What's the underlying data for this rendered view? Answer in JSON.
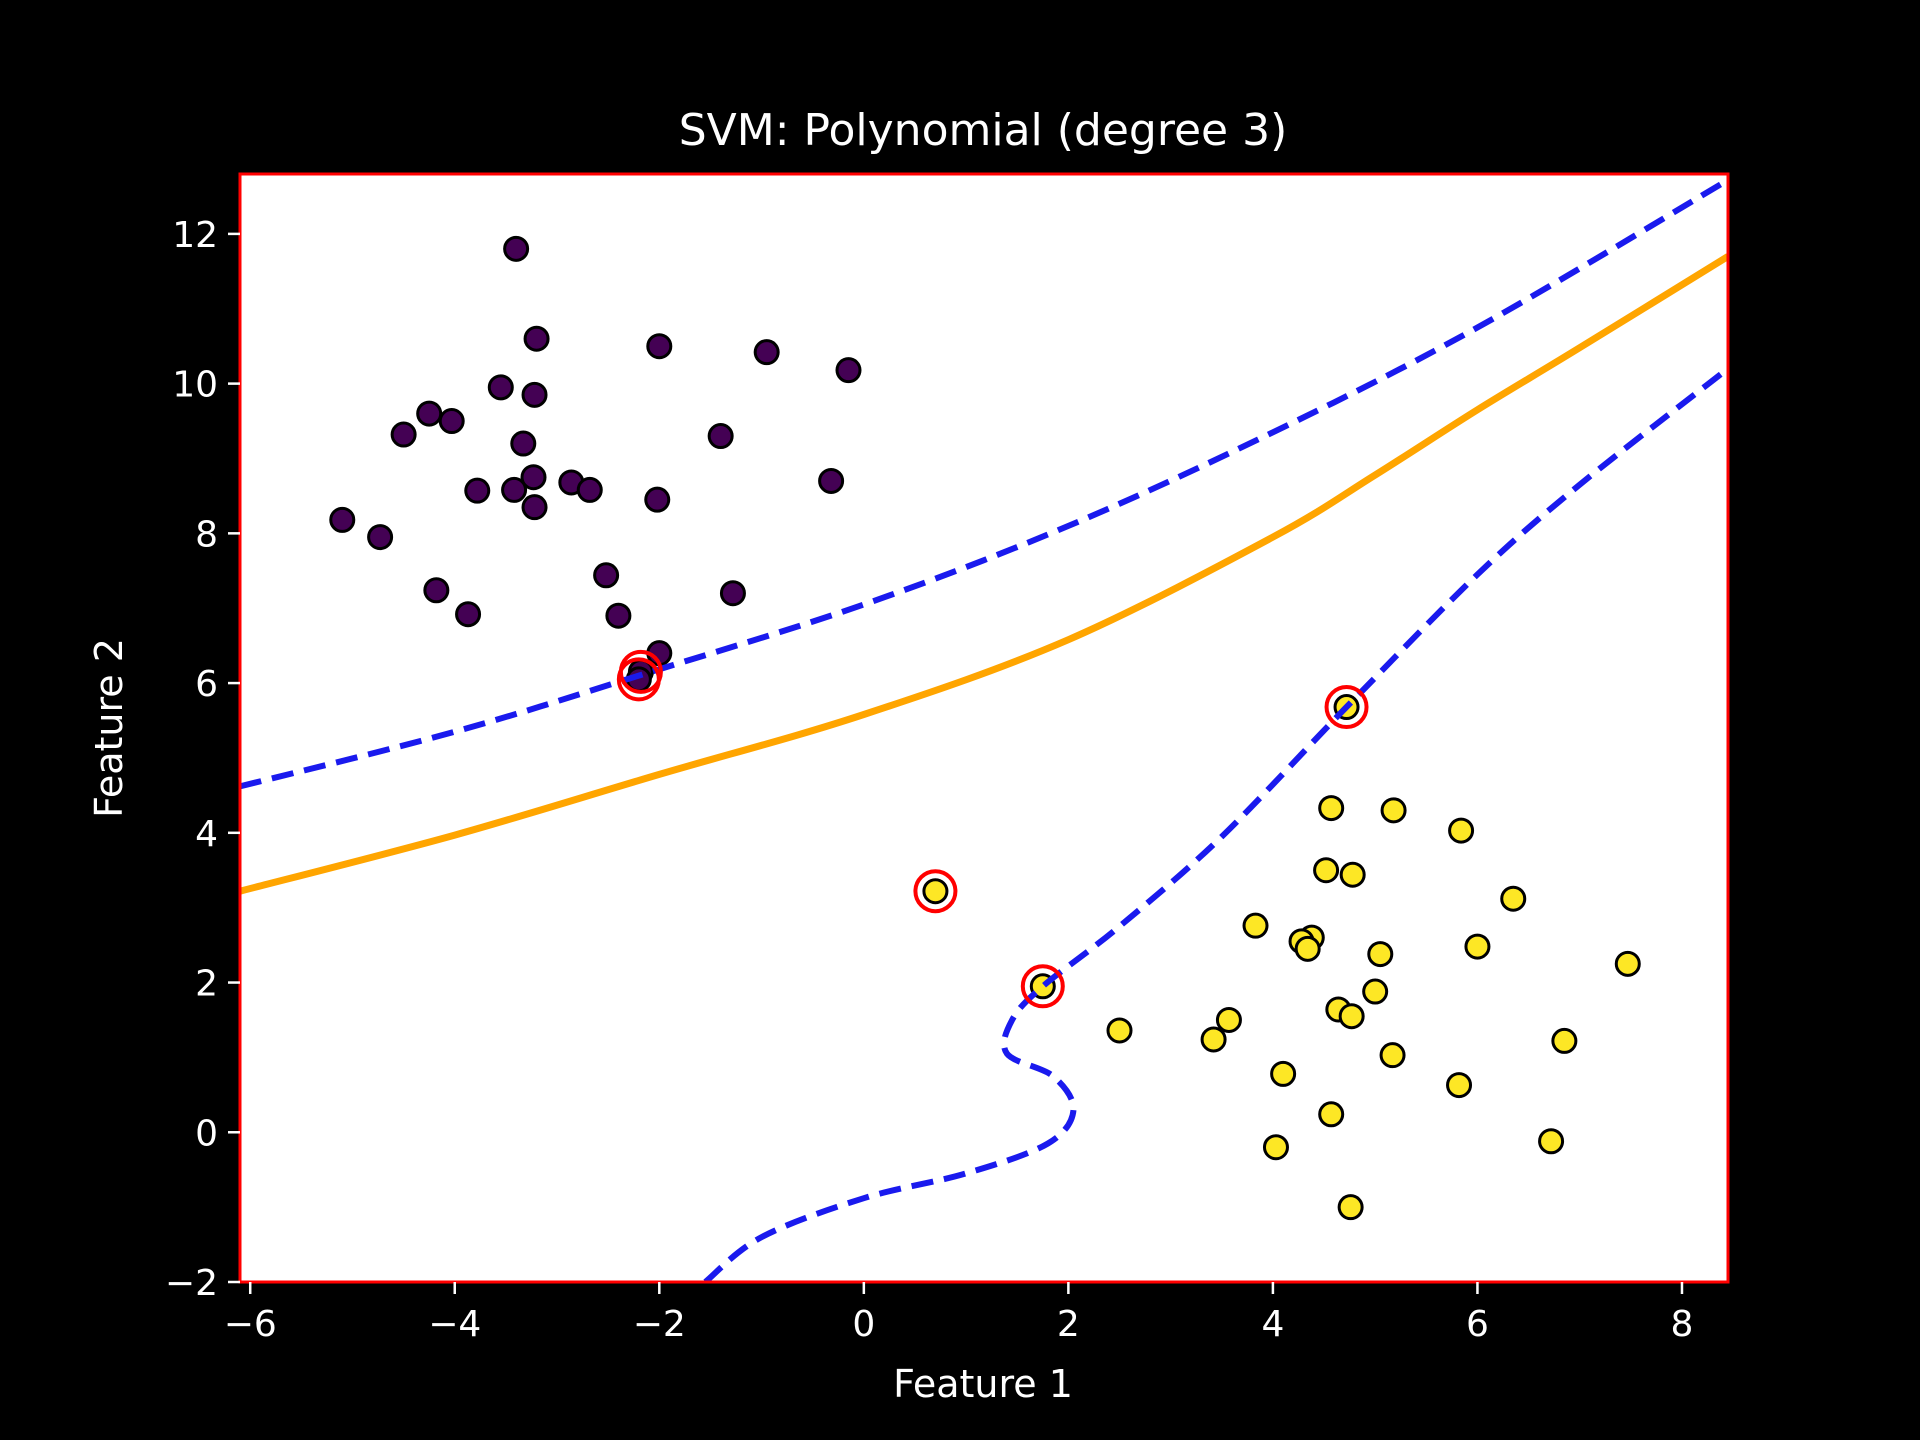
{
  "chart_data": {
    "type": "scatter",
    "title": "SVM: Polynomial (degree 3)",
    "xlabel": "Feature 1",
    "ylabel": "Feature 2",
    "xlim": [
      -6.1,
      8.45
    ],
    "ylim": [
      -2.0,
      12.8
    ],
    "xticks": [
      -6,
      -4,
      -2,
      0,
      2,
      4,
      6,
      8
    ],
    "yticks": [
      -2,
      0,
      2,
      4,
      6,
      8,
      10,
      12
    ],
    "xtick_labels": [
      "−6",
      "−4",
      "−2",
      "0",
      "2",
      "4",
      "6",
      "8"
    ],
    "ytick_labels": [
      "−2",
      "0",
      "2",
      "4",
      "6",
      "8",
      "10",
      "12"
    ],
    "grid": false,
    "colors": {
      "figure_background": "#000000",
      "plot_background": "#ffffff",
      "plot_border": "#ff0000",
      "class_0": "#440154",
      "class_1": "#fde725",
      "point_edge": "#000000",
      "decision_boundary": "#ffa500",
      "margin": "#1a1aee",
      "support_vector_ring": "#ff0000"
    },
    "series": [
      {
        "class": 0,
        "points": [
          [
            -3.4,
            11.8
          ],
          [
            -3.2,
            10.6
          ],
          [
            -2.0,
            10.5
          ],
          [
            -0.95,
            10.42
          ],
          [
            -0.15,
            10.18
          ],
          [
            -3.55,
            9.95
          ],
          [
            -3.22,
            9.85
          ],
          [
            -4.25,
            9.6
          ],
          [
            -4.03,
            9.5
          ],
          [
            -4.5,
            9.32
          ],
          [
            -3.33,
            9.2
          ],
          [
            -1.4,
            9.3
          ],
          [
            -3.23,
            8.75
          ],
          [
            -2.86,
            8.68
          ],
          [
            -2.68,
            8.58
          ],
          [
            -3.78,
            8.57
          ],
          [
            -3.42,
            8.58
          ],
          [
            -3.22,
            8.35
          ],
          [
            -2.02,
            8.45
          ],
          [
            -0.32,
            8.7
          ],
          [
            -5.1,
            8.18
          ],
          [
            -4.73,
            7.95
          ],
          [
            -2.52,
            7.44
          ],
          [
            -1.28,
            7.2
          ],
          [
            -4.18,
            7.24
          ],
          [
            -3.87,
            6.92
          ],
          [
            -2.4,
            6.9
          ],
          [
            -2.0,
            6.4
          ],
          [
            -2.18,
            6.15
          ],
          [
            -2.2,
            6.05
          ]
        ]
      },
      {
        "class": 1,
        "points": [
          [
            4.72,
            5.68
          ],
          [
            4.57,
            4.33
          ],
          [
            5.18,
            4.3
          ],
          [
            5.84,
            4.03
          ],
          [
            4.52,
            3.5
          ],
          [
            4.78,
            3.44
          ],
          [
            6.35,
            3.12
          ],
          [
            0.7,
            3.22
          ],
          [
            3.83,
            2.76
          ],
          [
            4.38,
            2.6
          ],
          [
            4.28,
            2.55
          ],
          [
            4.34,
            2.45
          ],
          [
            6.0,
            2.48
          ],
          [
            5.05,
            2.38
          ],
          [
            7.47,
            2.25
          ],
          [
            1.75,
            1.95
          ],
          [
            5.0,
            1.88
          ],
          [
            4.64,
            1.64
          ],
          [
            4.77,
            1.55
          ],
          [
            3.57,
            1.5
          ],
          [
            2.5,
            1.36
          ],
          [
            3.42,
            1.24
          ],
          [
            6.85,
            1.22
          ],
          [
            5.17,
            1.03
          ],
          [
            4.1,
            0.78
          ],
          [
            5.82,
            0.63
          ],
          [
            4.57,
            0.24
          ],
          [
            4.03,
            -0.2
          ],
          [
            6.72,
            -0.12
          ],
          [
            4.76,
            -1.0
          ]
        ]
      }
    ],
    "support_vectors": [
      [
        -2.18,
        6.15
      ],
      [
        -2.2,
        6.05
      ],
      [
        4.72,
        5.68
      ],
      [
        0.7,
        3.22
      ],
      [
        1.75,
        1.95
      ]
    ],
    "decision_boundary": [
      [
        -6.1,
        3.22
      ],
      [
        -4.0,
        3.97
      ],
      [
        -2.0,
        4.78
      ],
      [
        0.0,
        5.58
      ],
      [
        2.0,
        6.58
      ],
      [
        4.0,
        7.95
      ],
      [
        5.0,
        8.78
      ],
      [
        6.0,
        9.65
      ],
      [
        7.0,
        10.48
      ],
      [
        8.45,
        11.7
      ]
    ],
    "margin_upper": [
      [
        -6.1,
        4.62
      ],
      [
        -4.0,
        5.35
      ],
      [
        -2.2,
        6.1
      ],
      [
        0.0,
        7.05
      ],
      [
        2.0,
        8.1
      ],
      [
        4.0,
        9.35
      ],
      [
        6.0,
        10.75
      ],
      [
        8.45,
        12.72
      ]
    ],
    "margin_lower": [
      [
        -1.55,
        -2.0
      ],
      [
        -1.0,
        -1.4
      ],
      [
        0.0,
        -0.88
      ],
      [
        1.0,
        -0.55
      ],
      [
        1.8,
        -0.15
      ],
      [
        2.05,
        0.3
      ],
      [
        1.85,
        0.75
      ],
      [
        1.4,
        1.05
      ],
      [
        1.45,
        1.5
      ],
      [
        1.75,
        1.95
      ],
      [
        2.5,
        2.75
      ],
      [
        3.5,
        3.95
      ],
      [
        4.72,
        5.68
      ],
      [
        6.0,
        7.45
      ],
      [
        7.0,
        8.65
      ],
      [
        8.45,
        10.2
      ]
    ]
  }
}
